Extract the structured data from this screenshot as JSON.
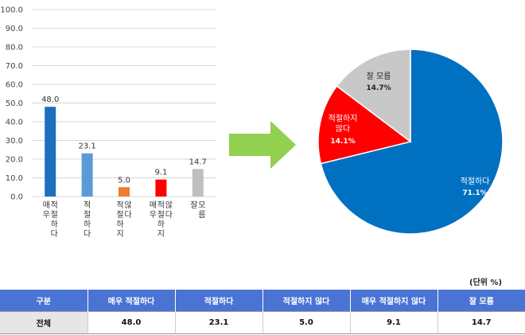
{
  "chart_data": [
    {
      "type": "bar",
      "categories": [
        "매우 적절하다",
        "적절하다",
        "적절하지 않다",
        "매우 적절하지 않다",
        "잘 모름"
      ],
      "values": [
        48.0,
        23.1,
        5.0,
        9.1,
        14.7
      ],
      "value_labels": [
        "48.0",
        "23.1",
        "5.0",
        "9.1",
        "14.7"
      ],
      "colors": [
        "#1f6fbf",
        "#5b9bd5",
        "#ed7d31",
        "#ff0000",
        "#bfbfbf"
      ],
      "ylim": [
        0,
        100
      ],
      "yticks": [
        "0.0",
        "10.0",
        "20.0",
        "30.0",
        "40.0",
        "50.0",
        "60.0",
        "70.0",
        "80.0",
        "90.0",
        "100.0"
      ],
      "grid": true
    },
    {
      "type": "pie",
      "labels": [
        "적절하다",
        "적절하지 않다",
        "잘 모름"
      ],
      "values": [
        71.1,
        14.1,
        14.7
      ],
      "value_labels": [
        "71.1%",
        "14.1%",
        "14.7%"
      ],
      "colors": [
        "#0070c0",
        "#ff0000",
        "#c8c8c8"
      ]
    }
  ],
  "icons": {
    "arrow": "right-arrow-icon",
    "arrow_color": "#92d050"
  },
  "unit_note": "(단위 %)",
  "table": {
    "headers": [
      "구분",
      "매우 적절하다",
      "적절하다",
      "적절하지 않다",
      "매우 적절하지 않다",
      "잘 모름"
    ],
    "header_color": "#4a74d4",
    "row_label": "전체",
    "values": [
      "48.0",
      "23.1",
      "5.0",
      "9.1",
      "14.7"
    ]
  }
}
